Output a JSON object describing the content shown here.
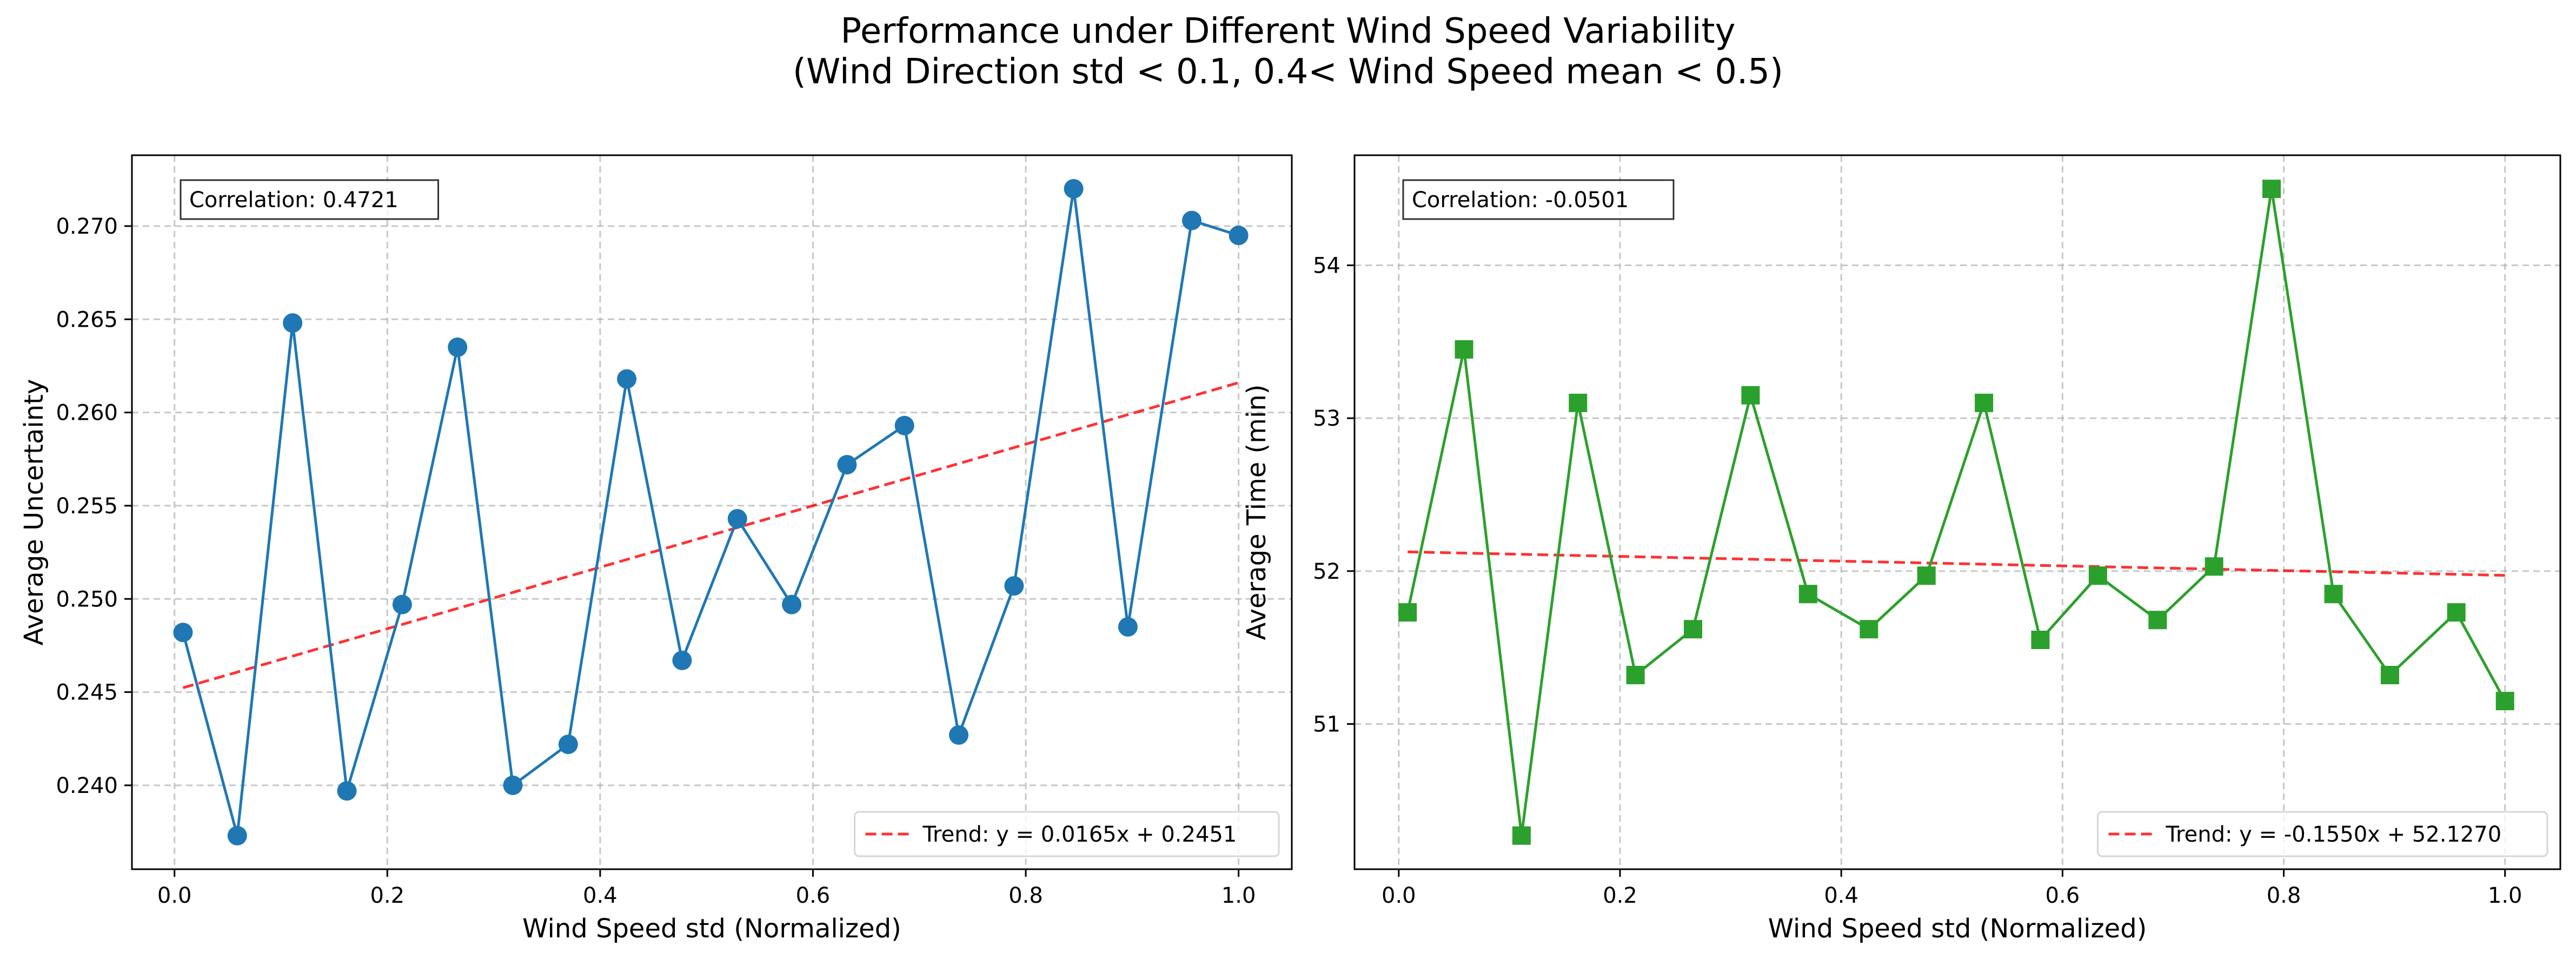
{
  "figure": {
    "title_line1": "Performance under Different Wind Speed Variability",
    "title_line2": "(Wind Direction std < 0.1, 0.4< Wind Speed mean < 0.5)"
  },
  "chart_data": [
    {
      "type": "line",
      "title": "",
      "xlabel": "Wind Speed std (Normalized)",
      "ylabel": "Average Uncertainty",
      "xlim": [
        -0.04,
        1.05
      ],
      "ylim": [
        0.2355,
        0.2738
      ],
      "xticks": [
        0.0,
        0.2,
        0.4,
        0.6,
        0.8,
        1.0
      ],
      "xtick_labels": [
        "0.0",
        "0.2",
        "0.4",
        "0.6",
        "0.8",
        "1.0"
      ],
      "yticks": [
        0.24,
        0.245,
        0.25,
        0.255,
        0.26,
        0.265,
        0.27
      ],
      "ytick_labels": [
        "0.240",
        "0.245",
        "0.250",
        "0.255",
        "0.260",
        "0.265",
        "0.270"
      ],
      "grid": true,
      "marker": "circle",
      "color": "#1f77b4",
      "trend_color": "#ff0000",
      "x": [
        0.008,
        0.059,
        0.111,
        0.162,
        0.214,
        0.266,
        0.318,
        0.37,
        0.425,
        0.477,
        0.529,
        0.58,
        0.632,
        0.686,
        0.737,
        0.789,
        0.845,
        0.896,
        0.956,
        1.0
      ],
      "y": [
        0.2482,
        0.2373,
        0.2648,
        0.2397,
        0.2497,
        0.2635,
        0.24,
        0.2422,
        0.2618,
        0.2467,
        0.2543,
        0.2497,
        0.2572,
        0.2593,
        0.2427,
        0.2507,
        0.272,
        0.2485,
        0.2703,
        0.2695
      ],
      "trend": {
        "slope": 0.0165,
        "intercept": 0.2451,
        "x_range": [
          0.008,
          1.0
        ]
      },
      "correlation_label": "Correlation: 0.4721",
      "legend_label": "Trend: y = 0.0165x + 0.2451",
      "legend_loc": "lower right"
    },
    {
      "type": "line",
      "title": "",
      "xlabel": "Wind Speed std (Normalized)",
      "ylabel": "Average Time (min)",
      "xlim": [
        -0.04,
        1.05
      ],
      "ylim": [
        50.05,
        54.72
      ],
      "xticks": [
        0.0,
        0.2,
        0.4,
        0.6,
        0.8,
        1.0
      ],
      "xtick_labels": [
        "0.0",
        "0.2",
        "0.4",
        "0.6",
        "0.8",
        "1.0"
      ],
      "yticks": [
        51,
        52,
        53,
        54
      ],
      "ytick_labels": [
        "51",
        "52",
        "53",
        "54"
      ],
      "grid": true,
      "marker": "square",
      "color": "#2ca02c",
      "trend_color": "#ff0000",
      "x": [
        0.008,
        0.059,
        0.111,
        0.162,
        0.214,
        0.266,
        0.318,
        0.37,
        0.425,
        0.477,
        0.529,
        0.58,
        0.632,
        0.686,
        0.737,
        0.789,
        0.845,
        0.896,
        0.956,
        1.0
      ],
      "y": [
        51.73,
        53.45,
        50.27,
        53.1,
        51.32,
        51.62,
        53.15,
        51.85,
        51.62,
        51.97,
        53.1,
        51.55,
        51.97,
        51.68,
        52.03,
        54.5,
        51.85,
        51.32,
        51.73,
        51.15
      ],
      "trend": {
        "slope": -0.155,
        "intercept": 52.127,
        "x_range": [
          0.008,
          1.0
        ]
      },
      "correlation_label": "Correlation: -0.0501",
      "legend_label": "Trend: y = -0.1550x + 52.1270",
      "legend_loc": "lower right"
    }
  ]
}
